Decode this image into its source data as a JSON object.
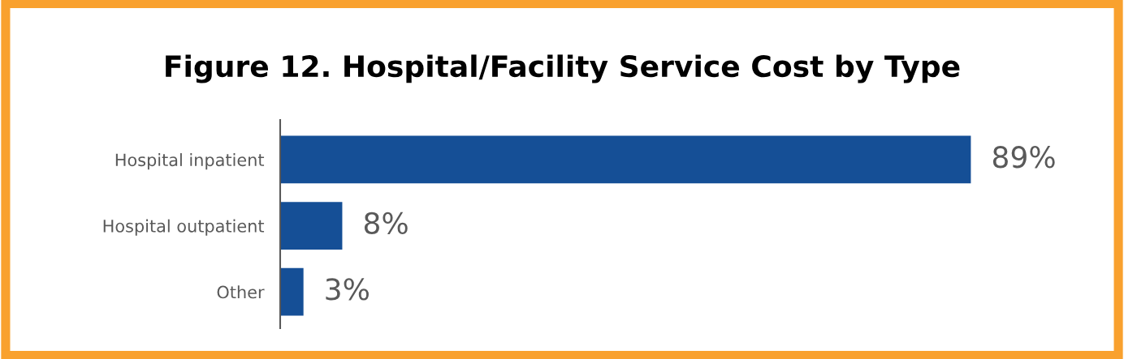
{
  "chart_data": {
    "type": "bar",
    "orientation": "horizontal",
    "title": "Figure 12. Hospital/Facility Service Cost by Type",
    "categories": [
      "Hospital inpatient",
      "Hospital outpatient",
      "Other"
    ],
    "values": [
      89,
      8,
      3
    ],
    "value_labels": [
      "89%",
      "8%",
      "3%"
    ],
    "color": "#154f96",
    "grid": false,
    "legend": false
  }
}
